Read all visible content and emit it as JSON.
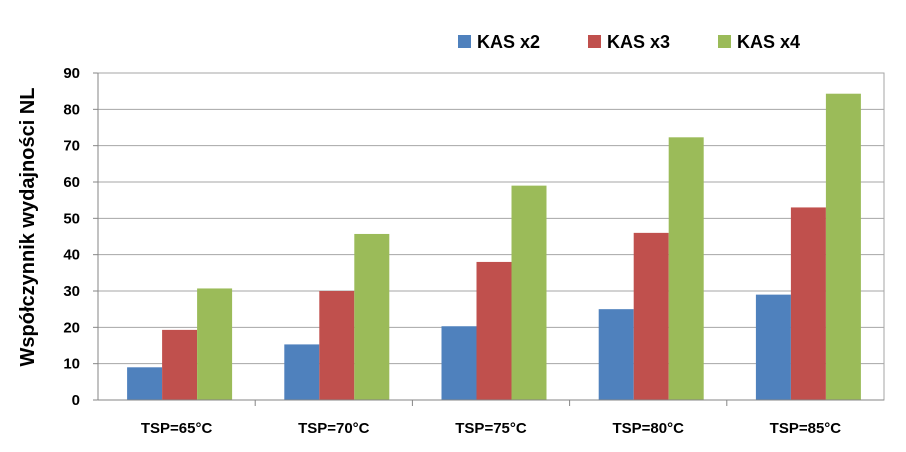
{
  "chart_data": {
    "type": "bar",
    "categories": [
      "TSP=65°C",
      "TSP=70°C",
      "TSP=75°C",
      "TSP=80°C",
      "TSP=85°C"
    ],
    "series": [
      {
        "name": "KAS x2",
        "color": "#4f81bd",
        "values": [
          9,
          15.3,
          20.3,
          25,
          29
        ]
      },
      {
        "name": "KAS x3",
        "color": "#c0504d",
        "values": [
          19.3,
          30,
          38,
          46,
          53
        ]
      },
      {
        "name": "KAS x4",
        "color": "#9bbb59",
        "values": [
          30.7,
          45.7,
          59,
          72.3,
          84.3
        ]
      }
    ],
    "ylabel": "Współczynnik wydajności NL",
    "xlabel": "",
    "ylim": [
      0,
      90
    ],
    "yticks": [
      0,
      10,
      20,
      30,
      40,
      50,
      60,
      70,
      80,
      90
    ],
    "grid": true,
    "legend_position": "top-right"
  }
}
